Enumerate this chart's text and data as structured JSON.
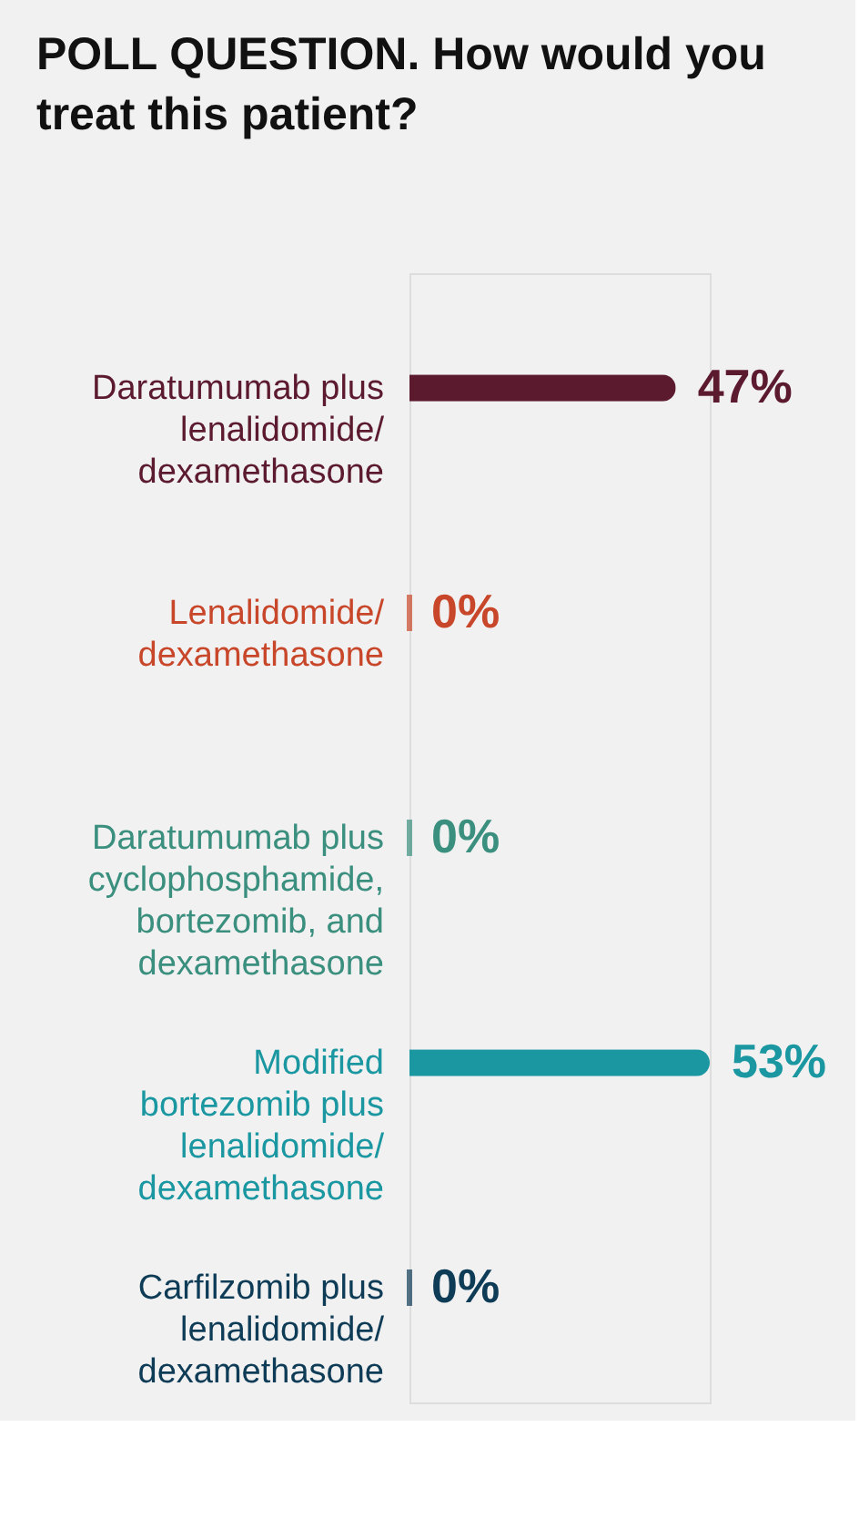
{
  "chart_data": {
    "type": "bar",
    "orientation": "horizontal",
    "title": "POLL QUESTION. How would you treat this patient?",
    "categories": [
      "Daratumumab plus lenalidomide/ dexamethasone",
      "Lenalidomide/ dexamethasone",
      "Daratumumab plus cyclophosphamide, bortezomib, and dexamethasone",
      "Modified bortezomib plus lenalidomide/ dexamethasone",
      "Carfilzomib plus lenalidomide/ dexamethasone"
    ],
    "values": [
      47,
      0,
      0,
      53,
      0
    ],
    "colors": [
      "#5c1a2e",
      "#c8472a",
      "#3a8f7e",
      "#1a97a0",
      "#0e3b56"
    ],
    "value_labels": [
      "47%",
      "0%",
      "0%",
      "53%",
      "0%"
    ]
  }
}
